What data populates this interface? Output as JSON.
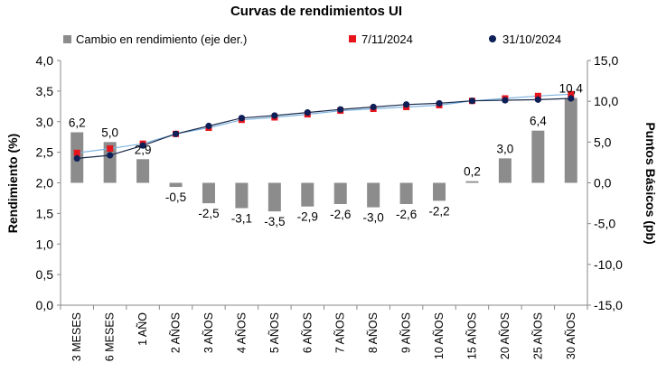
{
  "chart_data": {
    "type": "bar+scatter",
    "title": "Curvas de rendimientos UI",
    "ylabel": "Rendimiento (%)",
    "y2label": "Puntos Básicos (pb)",
    "ylim": [
      0,
      4
    ],
    "y2lim": [
      -15,
      15
    ],
    "yticks": [
      "0,0",
      "0,5",
      "1,0",
      "1,5",
      "2,0",
      "2,5",
      "3,0",
      "3,5",
      "4,0"
    ],
    "y2ticks": [
      "-15,0",
      "-10,0",
      "-5,0",
      "0,0",
      "5,0",
      "10,0",
      "15,0"
    ],
    "categories": [
      "3 MESES",
      "6 MESES",
      "1 AÑO",
      "2 AÑOS",
      "3 AÑOS",
      "4 AÑOS",
      "5 AÑOS",
      "6 AÑOS",
      "7 AÑOS",
      "8 AÑOS",
      "9 AÑOS",
      "10 AÑOS",
      "15 AÑOS",
      "20 AÑOS",
      "25 AÑOS",
      "30 AÑOS"
    ],
    "legend": {
      "bar": "Cambio en rendimiento (eje der.)",
      "s1": "7/11/2024",
      "s2": "31/10/2024"
    },
    "bar_values": [
      6.2,
      5.0,
      2.9,
      -0.5,
      -2.5,
      -3.1,
      -3.5,
      -2.9,
      -2.6,
      -3.0,
      -2.6,
      -2.2,
      0.2,
      3.0,
      6.4,
      10.4
    ],
    "bar_labels": [
      "6,2",
      "5,0",
      "2,9",
      "-0,5",
      "-2,5",
      "-3,1",
      "-3,5",
      "-2,9",
      "-2,6",
      "-3,0",
      "-2,6",
      "-2,2",
      "0,2",
      "3,0",
      "6,4",
      "10,4"
    ],
    "series_nov": [
      2.49,
      2.56,
      2.64,
      2.8,
      2.9,
      3.03,
      3.07,
      3.12,
      3.18,
      3.21,
      3.24,
      3.27,
      3.34,
      3.38,
      3.42,
      3.45
    ],
    "series_oct": [
      2.4,
      2.45,
      2.61,
      2.8,
      2.93,
      3.06,
      3.1,
      3.15,
      3.2,
      3.24,
      3.28,
      3.3,
      3.34,
      3.35,
      3.36,
      3.38
    ],
    "colors": {
      "bar": "#8c8c8c",
      "nov": "#e8141b",
      "oct": "#0d1f56",
      "trend_dark": "#1a2a4a",
      "trend_light": "#7db3e0"
    }
  }
}
